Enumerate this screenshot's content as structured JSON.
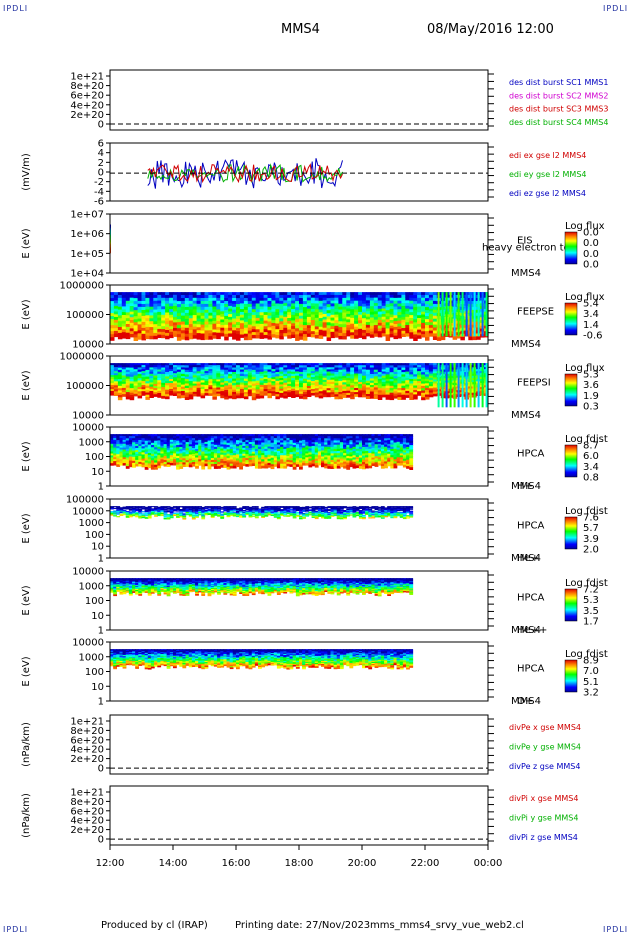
{
  "corner": {
    "tl": "IPDLI",
    "tr": "IPDLI",
    "bl": "IPDLI",
    "br": "IPDLI"
  },
  "header": {
    "title": "MMS4",
    "date": "08/May/2016 12:00"
  },
  "footer": {
    "produced": "Produced by cl (IRAP)",
    "printing": "Printing date: 27/Nov/2023",
    "file": "mms_mms4_srvy_vue_web2.cl"
  },
  "chart_data": {
    "type": "multi-panel time series",
    "x_ticks": [
      "12:00",
      "14:00",
      "16:00",
      "18:00",
      "20:00",
      "22:00",
      "00:00"
    ],
    "panels": [
      {
        "id": "p1",
        "type": "line",
        "ylabel": "",
        "yticks": [
          "1e+21",
          "8e+20",
          "6e+20",
          "4e+20",
          "2e+20",
          "0"
        ],
        "legend": [
          {
            "name": "des dist burst SC1 MMS1",
            "color": "#0000c0"
          },
          {
            "name": "des dist burst SC2 MMS2",
            "color": "#d000d0"
          },
          {
            "name": "des dist burst SC3 MMS3",
            "color": "#d00000"
          },
          {
            "name": "des dist burst SC4 MMS4",
            "color": "#00b000"
          }
        ]
      },
      {
        "id": "p2",
        "type": "line",
        "ylabel": "(mV/m)",
        "yticks": [
          "6",
          "4",
          "2",
          "0",
          "-2",
          "-4",
          "-6"
        ],
        "legend": [
          {
            "name": "edi ex gse l2 MMS4",
            "color": "#d00000"
          },
          {
            "name": "edi ey gse l2 MMS4",
            "color": "#00b000"
          },
          {
            "name": "edi ez gse l2 MMS4",
            "color": "#0000c0"
          }
        ]
      },
      {
        "id": "p3",
        "type": "spectrogram",
        "ylabel": "E (eV)",
        "yticks": [
          "1e+07",
          "1e+06",
          "1e+05",
          "1e+04"
        ],
        "instrument": "EIS",
        "sublabel": "MMS4",
        "overlay": "heavy electron to",
        "cbar_title": "Log flux",
        "cbar_ticks": [
          "0.0",
          "0.0",
          "0.0",
          "0.0"
        ]
      },
      {
        "id": "p4",
        "type": "spectrogram",
        "ylabel": "E (eV)",
        "yticks": [
          "1000000",
          "100000",
          "10000"
        ],
        "instrument": "FEEPSE",
        "sublabel": "MMS4",
        "cbar_title": "Log flux",
        "cbar_ticks": [
          "5.4",
          "3.4",
          "1.4",
          "-0.6"
        ]
      },
      {
        "id": "p5",
        "type": "spectrogram",
        "ylabel": "E (eV)",
        "yticks": [
          "1000000",
          "100000",
          "10000"
        ],
        "instrument": "FEEPSI",
        "sublabel": "MMS4",
        "cbar_title": "Log flux",
        "cbar_ticks": [
          "5.3",
          "3.6",
          "1.9",
          "0.3"
        ]
      },
      {
        "id": "p6",
        "type": "spectrogram",
        "ylabel": "E (eV)",
        "yticks": [
          "10000",
          "1000",
          "100",
          "10",
          "1"
        ],
        "instrument": "HPCA",
        "sublabel": "MMS4",
        "species": "H+",
        "cbar_title": "Log fdist",
        "cbar_ticks": [
          "8.7",
          "6.0",
          "3.4",
          "0.8"
        ]
      },
      {
        "id": "p7",
        "type": "spectrogram",
        "ylabel": "E (eV)",
        "yticks": [
          "100000",
          "10000",
          "1000",
          "100",
          "10",
          "1"
        ],
        "instrument": "HPCA",
        "sublabel": "MMS4",
        "species": "He+",
        "cbar_title": "Log fdist",
        "cbar_ticks": [
          "7.6",
          "5.7",
          "3.9",
          "2.0"
        ]
      },
      {
        "id": "p8",
        "type": "spectrogram",
        "ylabel": "E (eV)",
        "yticks": [
          "10000",
          "1000",
          "100",
          "10",
          "1"
        ],
        "instrument": "HPCA",
        "sublabel": "MMS4",
        "species": "He++",
        "cbar_title": "Log fdist",
        "cbar_ticks": [
          "7.2",
          "5.3",
          "3.5",
          "1.7"
        ]
      },
      {
        "id": "p9",
        "type": "spectrogram",
        "ylabel": "E (eV)",
        "yticks": [
          "10000",
          "1000",
          "100",
          "10",
          "1"
        ],
        "instrument": "HPCA",
        "sublabel": "MMS4",
        "species": "O+",
        "cbar_title": "Log fdist",
        "cbar_ticks": [
          "8.9",
          "7.0",
          "5.1",
          "3.2"
        ]
      },
      {
        "id": "p10",
        "type": "line",
        "ylabel": "(nPa/km)",
        "yticks": [
          "1e+21",
          "8e+20",
          "6e+20",
          "4e+20",
          "2e+20",
          "0"
        ],
        "legend": [
          {
            "name": "divPe x gse MMS4",
            "color": "#d00000"
          },
          {
            "name": "divPe y gse MMS4",
            "color": "#00b000"
          },
          {
            "name": "divPe z gse MMS4",
            "color": "#0000c0"
          }
        ]
      },
      {
        "id": "p11",
        "type": "line",
        "ylabel": "(nPa/km)",
        "yticks": [
          "1e+21",
          "8e+20",
          "6e+20",
          "4e+20",
          "2e+20",
          "0"
        ],
        "legend": [
          {
            "name": "divPi x gse MMS4",
            "color": "#d00000"
          },
          {
            "name": "divPi y gse MMS4",
            "color": "#00b000"
          },
          {
            "name": "divPi z gse MMS4",
            "color": "#0000c0"
          }
        ]
      }
    ]
  }
}
